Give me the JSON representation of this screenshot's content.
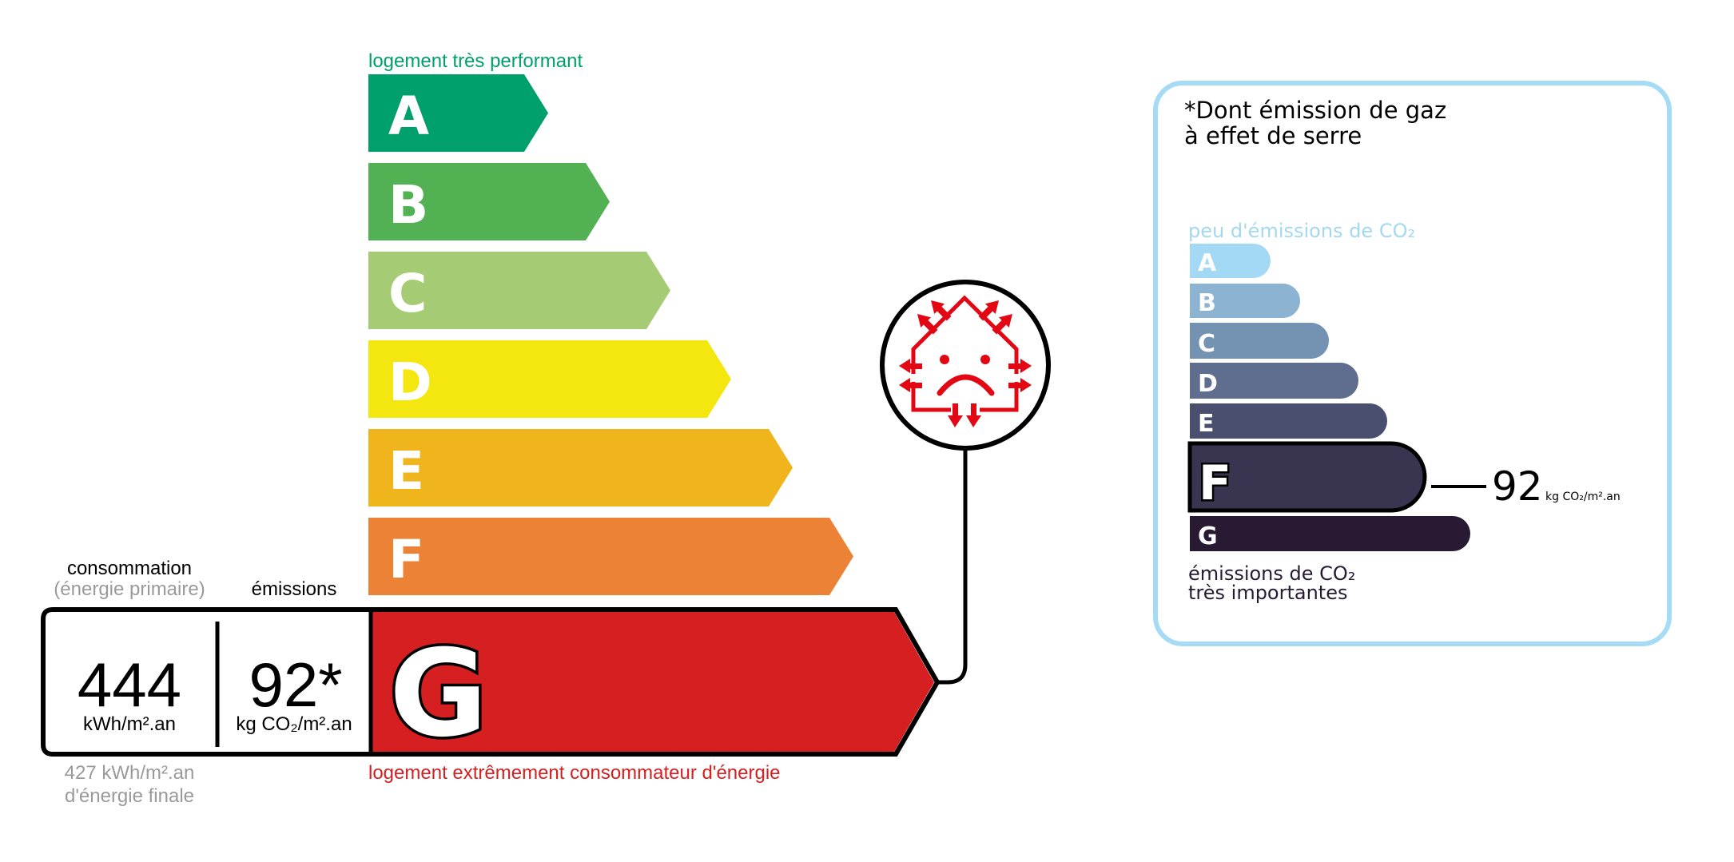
{
  "energy": {
    "top_label": "logement très performant",
    "bottom_label": "logement extrêmement consommateur d'énergie",
    "classes": [
      {
        "letter": "A",
        "color": "#00a06d"
      },
      {
        "letter": "B",
        "color": "#52b153"
      },
      {
        "letter": "C",
        "color": "#a5cc74"
      },
      {
        "letter": "D",
        "color": "#f4e70f"
      },
      {
        "letter": "E",
        "color": "#f0b41c"
      },
      {
        "letter": "F",
        "color": "#eb8235"
      },
      {
        "letter": "G",
        "color": "#d61f21"
      }
    ],
    "current_class": "G",
    "consumption_header": "consommation",
    "consumption_subheader": "(énergie primaire)",
    "emissions_header": "émissions",
    "consumption_value": "444",
    "consumption_unit": "kWh/m².an",
    "emissions_value": "92*",
    "emissions_unit": "kg CO₂/m².an",
    "final_energy_value": "427 kWh/m².an",
    "final_energy_label": "d'énergie finale",
    "badge_icon": "house-heat-loss-sad-face-icon",
    "badge_color": "#e30613"
  },
  "ges": {
    "title_line1": "*Dont émission de gaz",
    "title_line2": "à effet de serre",
    "top_label": "peu d'émissions de CO₂",
    "bottom_label_line1": "émissions de CO₂",
    "bottom_label_line2": "très importantes",
    "classes": [
      {
        "letter": "A",
        "color": "#a4d9f6"
      },
      {
        "letter": "B",
        "color": "#8db3d3"
      },
      {
        "letter": "C",
        "color": "#7493b3"
      },
      {
        "letter": "D",
        "color": "#5f6d8e"
      },
      {
        "letter": "E",
        "color": "#4b4f6f"
      },
      {
        "letter": "F",
        "color": "#393551"
      },
      {
        "letter": "G",
        "color": "#281a33"
      }
    ],
    "current_class": "F",
    "value": "92",
    "unit": "kg CO₂/m².an",
    "border_color": "#a6dbf5"
  }
}
